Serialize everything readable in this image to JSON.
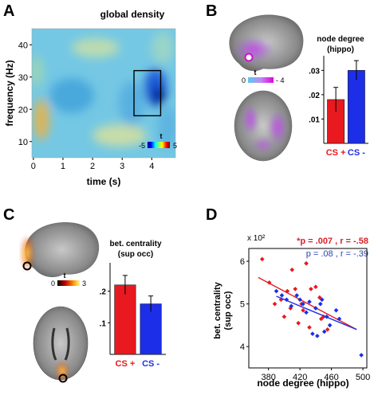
{
  "panels": {
    "A": "A",
    "B": "B",
    "C": "C",
    "D": "D"
  },
  "panel_a": {
    "title": "global density",
    "colorbar_label": "t",
    "colorbar_ticks": [
      "-5",
      "5"
    ]
  },
  "panel_b": {
    "colorbar_label": "t",
    "colorbar_ticks": [
      "0",
      "- 4"
    ]
  },
  "panel_c": {
    "colorbar_label": "t",
    "colorbar_ticks": [
      "0",
      "3"
    ]
  },
  "panel_d": {
    "annotation_red": "*p = .007 , r = -.58",
    "annotation_blue": "p = .08 , r = -.39",
    "multiplier": "x 10²"
  },
  "colors": {
    "cs_plus": "#e8191f",
    "cs_minus": "#1d2ee8",
    "annotation_red": "#d8222a",
    "annotation_blue": "#2a3fb0"
  },
  "chart_data": [
    {
      "type": "heatmap",
      "panel": "A",
      "title": "global density",
      "xlabel": "time (s)",
      "ylabel": "frequency (Hz)",
      "xlim": [
        -0.05,
        4.8
      ],
      "ylim": [
        5,
        45
      ],
      "xticks": [
        "0",
        "1",
        "2",
        "3",
        "4"
      ],
      "yticks": [
        "10",
        "20",
        "30",
        "40"
      ],
      "color_range": [
        -5,
        5
      ],
      "highlight_box": {
        "x": [
          3.4,
          4.3
        ],
        "y": [
          18,
          32
        ]
      }
    },
    {
      "type": "bar",
      "panel": "B",
      "title": "node degree\n(hippo)",
      "categories": [
        "CS +",
        "CS -"
      ],
      "values": [
        0.018,
        0.03
      ],
      "errors": [
        0.005,
        0.004
      ],
      "ylim": [
        0,
        0.036
      ],
      "yticks": [
        ".01",
        ".02",
        ".03"
      ]
    },
    {
      "type": "bar",
      "panel": "C",
      "title": "bet. centrality\n(sup occ)",
      "categories": [
        "CS +",
        "CS -"
      ],
      "values": [
        0.22,
        0.16
      ],
      "errors": [
        0.03,
        0.025
      ],
      "ylim": [
        0,
        0.29
      ],
      "yticks": [
        ".1",
        ".2"
      ]
    },
    {
      "type": "scatter",
      "panel": "D",
      "xlabel": "node degree (hippo)",
      "ylabel": "bet. centrality\n(sup occ)",
      "xlim": [
        355,
        505
      ],
      "ylim": [
        3.5,
        6.3
      ],
      "xticks": [
        "380",
        "420",
        "460",
        "500"
      ],
      "yticks": [
        "4",
        "5",
        "6"
      ],
      "series": [
        {
          "name": "CS +",
          "color": "#e8191f",
          "points": [
            [
              372,
              6.05
            ],
            [
              381,
              5.5
            ],
            [
              388,
              5.0
            ],
            [
              396,
              5.1
            ],
            [
              400,
              4.7
            ],
            [
              404,
              5.3
            ],
            [
              408,
              4.9
            ],
            [
              410,
              5.8
            ],
            [
              414,
              5.35
            ],
            [
              418,
              4.55
            ],
            [
              422,
              5.0
            ],
            [
              424,
              4.85
            ],
            [
              428,
              5.95
            ],
            [
              432,
              4.45
            ],
            [
              434,
              5.35
            ],
            [
              440,
              5.4
            ],
            [
              445,
              5.15
            ],
            [
              447,
              4.65
            ],
            [
              450,
              4.7
            ],
            [
              455,
              4.4
            ]
          ],
          "fit": [
            [
              367,
              5.62
            ],
            [
              492,
              4.4
            ]
          ]
        },
        {
          "name": "CS -",
          "color": "#1d2ee8",
          "points": [
            [
              390,
              5.3
            ],
            [
              397,
              5.2
            ],
            [
              403,
              5.1
            ],
            [
              409,
              4.95
            ],
            [
              416,
              5.2
            ],
            [
              420,
              5.1
            ],
            [
              424,
              5.0
            ],
            [
              428,
              4.8
            ],
            [
              432,
              5.05
            ],
            [
              436,
              4.3
            ],
            [
              440,
              4.9
            ],
            [
              442,
              4.25
            ],
            [
              446,
              5.0
            ],
            [
              448,
              5.1
            ],
            [
              451,
              4.35
            ],
            [
              454,
              4.7
            ],
            [
              458,
              4.5
            ],
            [
              466,
              4.85
            ],
            [
              470,
              4.65
            ],
            [
              498,
              3.8
            ]
          ],
          "fit": [
            [
              390,
              5.18
            ],
            [
              492,
              4.4
            ]
          ]
        }
      ]
    }
  ]
}
